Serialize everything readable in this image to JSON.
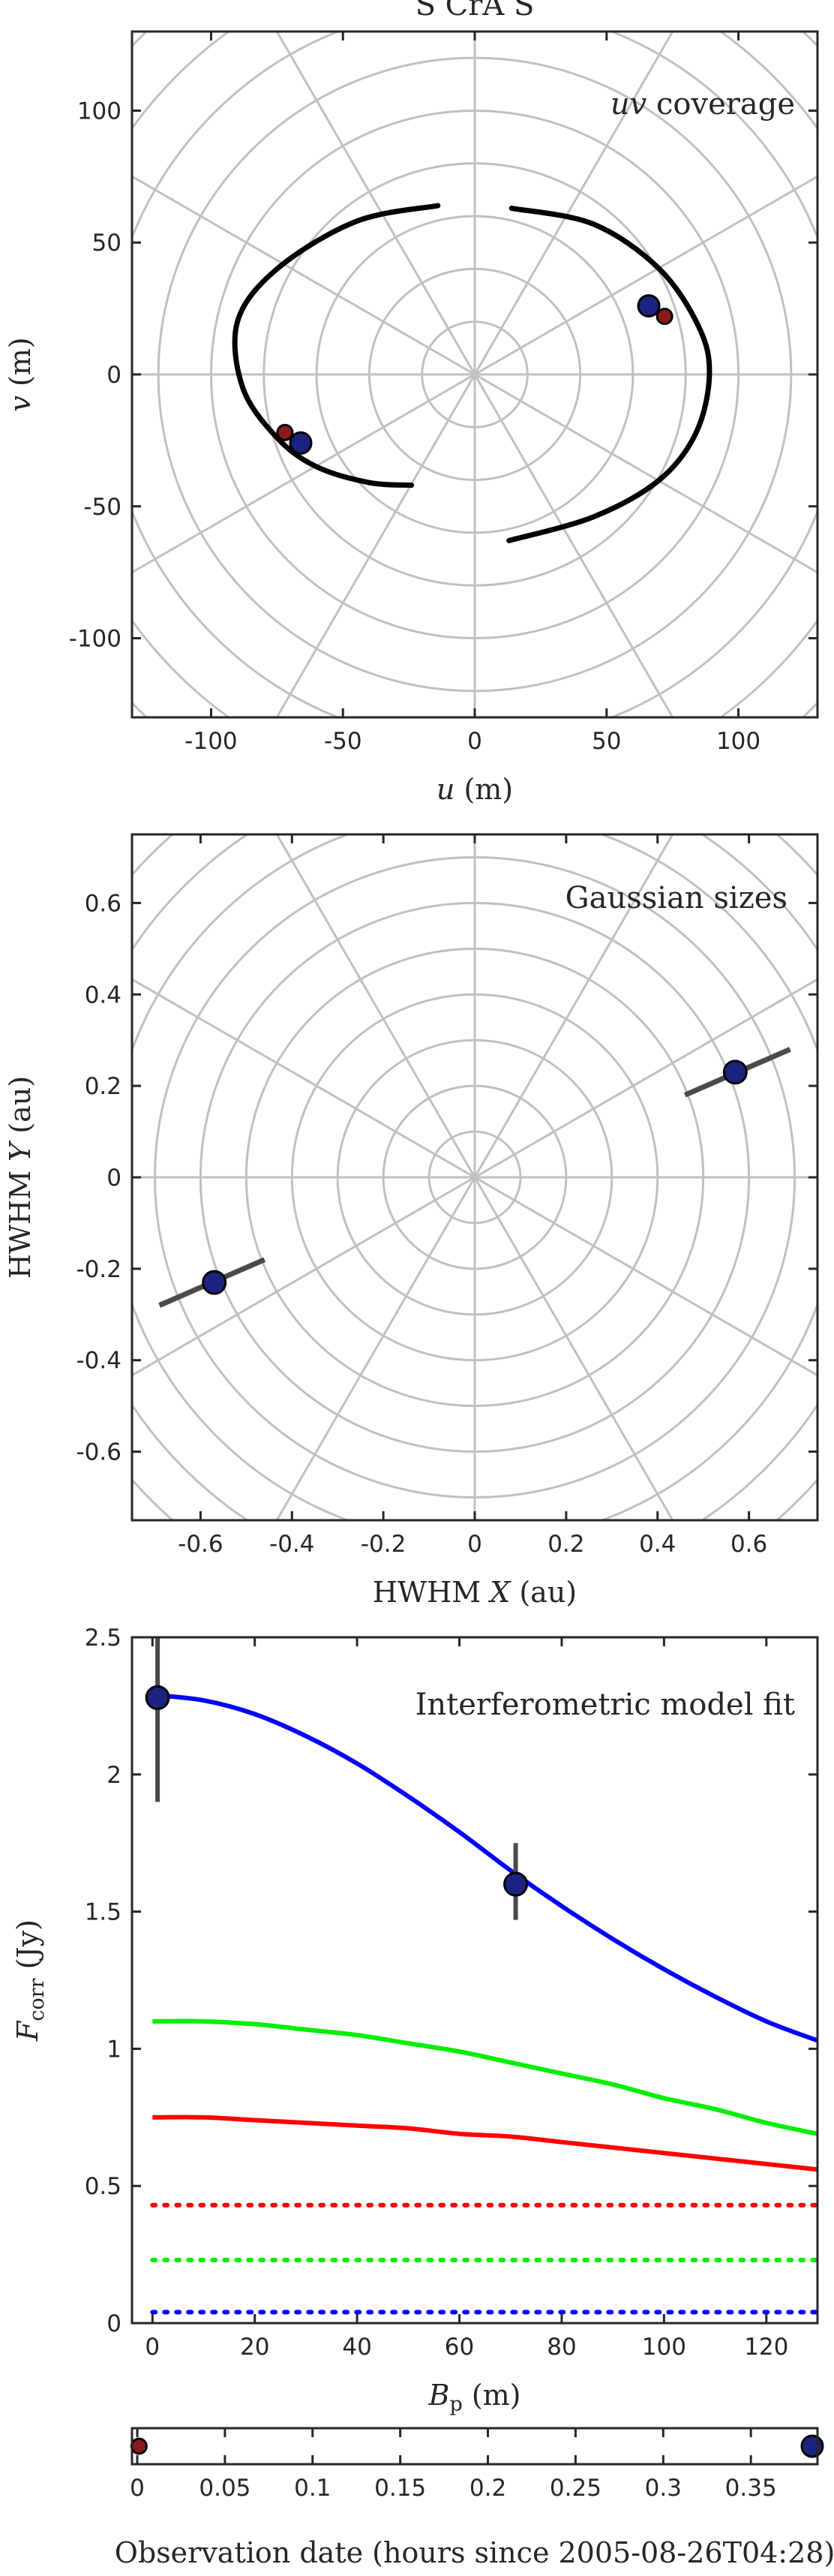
{
  "chart_data": [
    {
      "type": "scatter",
      "title": "S CrA S",
      "annotation_prefix": "uv",
      "annotation_suffix": " coverage",
      "xlabel_var": "u",
      "xlabel_unit": " (m)",
      "ylabel_var": "v",
      "ylabel_unit": " (m)",
      "xlim": [
        -130,
        130
      ],
      "ylim": [
        -130,
        130
      ],
      "xticks": [
        -100,
        -50,
        0,
        50,
        100
      ],
      "yticks": [
        -100,
        -50,
        0,
        50,
        100
      ],
      "polar_grid": {
        "radius_step": 20,
        "angle_step_deg": 30
      },
      "tracks": [
        {
          "points": [
            [
              -14,
              64
            ],
            [
              -45,
              58
            ],
            [
              -75,
              40
            ],
            [
              -90,
              20
            ],
            [
              -88,
              -5
            ],
            [
              -75,
              -24
            ],
            [
              -60,
              -35
            ],
            [
              -40,
              -41
            ],
            [
              -24,
              -42
            ]
          ]
        },
        {
          "points": [
            [
              14,
              63
            ],
            [
              45,
              57
            ],
            [
              70,
              40
            ],
            [
              85,
              18
            ],
            [
              89,
              0
            ],
            [
              84,
              -22
            ],
            [
              70,
              -40
            ],
            [
              45,
              -54
            ],
            [
              13,
              -63
            ]
          ]
        }
      ],
      "series": [
        {
          "color": "#1a237e",
          "points": [
            [
              66,
              26
            ],
            [
              -66,
              -26
            ]
          ]
        },
        {
          "color": "#8b1a1a",
          "points": [
            [
              72,
              22
            ],
            [
              -72,
              -22
            ]
          ]
        }
      ]
    },
    {
      "type": "scatter",
      "annotation": "Gaussian sizes",
      "xlabel_prefix": "HWHM ",
      "xlabel_var": "X",
      "xlabel_unit": " (au)",
      "ylabel_prefix": "HWHM ",
      "ylabel_var": "Y",
      "ylabel_unit": " (au)",
      "xlim": [
        -0.75,
        0.75
      ],
      "ylim": [
        -0.75,
        0.75
      ],
      "xticks": [
        -0.6,
        -0.4,
        -0.2,
        0,
        0.2,
        0.4,
        0.6
      ],
      "yticks": [
        -0.6,
        -0.4,
        -0.2,
        0,
        0.2,
        0.4,
        0.6
      ],
      "polar_grid": {
        "radius_step": 0.1,
        "angle_step_deg": 30
      },
      "points": [
        {
          "x": 0.57,
          "y": 0.23,
          "err_from": [
            0.46,
            0.18
          ],
          "err_to": [
            0.69,
            0.28
          ]
        },
        {
          "x": -0.57,
          "y": -0.23,
          "err_from": [
            -0.69,
            -0.28
          ],
          "err_to": [
            -0.46,
            -0.18
          ]
        }
      ]
    },
    {
      "type": "line",
      "annotation": "Interferometric model fit",
      "xlabel_var": "B",
      "xlabel_sub": "p",
      "xlabel_unit": " (m)",
      "ylabel_var": "F",
      "ylabel_sub": "corr",
      "ylabel_unit": " (Jy)",
      "xlim": [
        -4,
        130
      ],
      "ylim": [
        0,
        2.5
      ],
      "xticks": [
        0,
        20,
        40,
        60,
        80,
        100,
        120
      ],
      "yticks": [
        0,
        0.5,
        1,
        1.5,
        2,
        2.5
      ],
      "ytick_labels": [
        "0",
        "0.5",
        "1",
        "1.5",
        "2",
        "2.5"
      ],
      "series": [
        {
          "color": "#0000ff",
          "style": "solid",
          "x": [
            0,
            10,
            20,
            30,
            40,
            50,
            60,
            70,
            80,
            90,
            100,
            110,
            120,
            130
          ],
          "y": [
            2.29,
            2.27,
            2.22,
            2.14,
            2.04,
            1.92,
            1.79,
            1.65,
            1.52,
            1.4,
            1.29,
            1.19,
            1.1,
            1.03
          ]
        },
        {
          "color": "#00ee00",
          "style": "solid",
          "x": [
            0,
            10,
            20,
            30,
            40,
            50,
            60,
            70,
            80,
            90,
            100,
            110,
            120,
            130
          ],
          "y": [
            1.1,
            1.1,
            1.09,
            1.07,
            1.05,
            1.02,
            0.99,
            0.95,
            0.91,
            0.87,
            0.82,
            0.78,
            0.73,
            0.69
          ]
        },
        {
          "color": "#ff0000",
          "style": "solid",
          "x": [
            0,
            10,
            20,
            30,
            40,
            50,
            60,
            70,
            80,
            90,
            100,
            110,
            120,
            130
          ],
          "y": [
            0.75,
            0.75,
            0.74,
            0.73,
            0.72,
            0.71,
            0.69,
            0.68,
            0.66,
            0.64,
            0.62,
            0.6,
            0.58,
            0.56
          ]
        },
        {
          "color": "#ff0000",
          "style": "dotted",
          "x": [
            0,
            130
          ],
          "y": [
            0.43,
            0.43
          ]
        },
        {
          "color": "#00ee00",
          "style": "dotted",
          "x": [
            0,
            130
          ],
          "y": [
            0.23,
            0.23
          ]
        },
        {
          "color": "#0000ff",
          "style": "dotted",
          "x": [
            0,
            130
          ],
          "y": [
            0.04,
            0.04
          ]
        }
      ],
      "points": [
        {
          "x": 1,
          "y": 2.28,
          "yerr": [
            1.9,
            2.5
          ]
        },
        {
          "x": 71,
          "y": 1.6,
          "yerr": [
            1.47,
            1.75
          ]
        }
      ]
    },
    {
      "type": "scatter",
      "xlabel": "Observation date (hours since 2005-08-26T04:28)",
      "xlim": [
        -0.003,
        0.388
      ],
      "xticks": [
        0,
        0.05,
        0.1,
        0.15,
        0.2,
        0.25,
        0.3,
        0.35
      ],
      "xtick_labels": [
        "0",
        "0.05",
        "0.1",
        "0.15",
        "0.2",
        "0.25",
        "0.3",
        "0.35"
      ],
      "points": [
        {
          "x": 0.001,
          "color": "#8b1a1a"
        },
        {
          "x": 0.385,
          "color": "#1a237e"
        }
      ]
    }
  ]
}
